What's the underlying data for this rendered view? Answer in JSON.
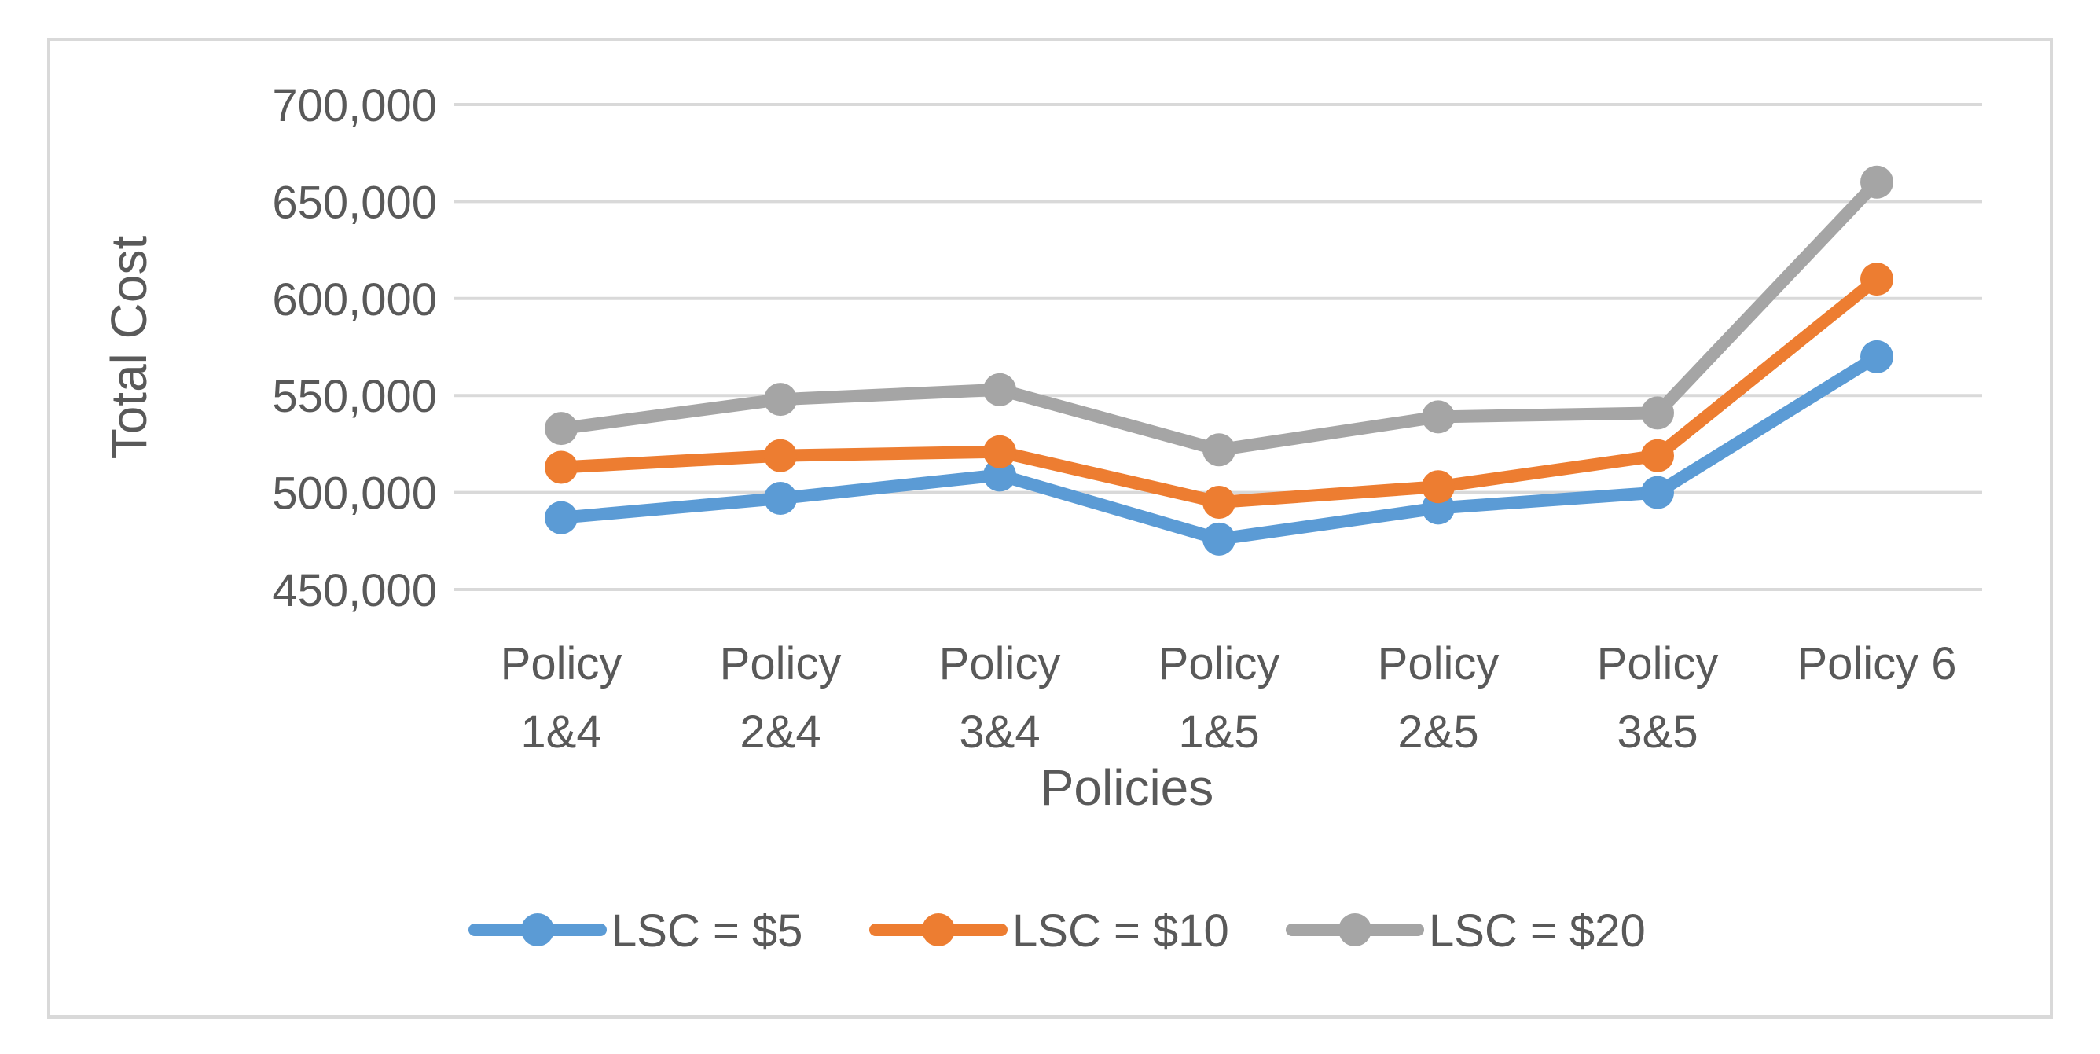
{
  "chart_data": {
    "type": "line",
    "title": "",
    "xlabel": "Policies",
    "ylabel": "Total Cost",
    "categories": [
      [
        "Policy",
        "1&4"
      ],
      [
        "Policy",
        "2&4"
      ],
      [
        "Policy",
        "3&4"
      ],
      [
        "Policy",
        "1&5"
      ],
      [
        "Policy",
        "2&5"
      ],
      [
        "Policy",
        "3&5"
      ],
      [
        "Policy 6"
      ]
    ],
    "ylim": [
      450000,
      700000
    ],
    "yticks": [
      450000,
      500000,
      550000,
      600000,
      650000,
      700000
    ],
    "ytick_labels": [
      "450,000",
      "500,000",
      "550,000",
      "600,000",
      "650,000",
      "700,000"
    ],
    "grid": true,
    "legend_position": "bottom",
    "series": [
      {
        "name": "LSC = $5",
        "color": "#5B9BD5",
        "values": [
          487000,
          497000,
          509000,
          476000,
          492000,
          500000,
          570000
        ]
      },
      {
        "name": "LSC = $10",
        "color": "#ED7D31",
        "values": [
          513000,
          519000,
          521000,
          495000,
          503000,
          519000,
          610000
        ]
      },
      {
        "name": "LSC = $20",
        "color": "#A5A5A5",
        "values": [
          533000,
          548000,
          553000,
          522000,
          539000,
          541000,
          660000
        ]
      }
    ]
  },
  "style": {
    "gridline_color": "#D9D9D9",
    "border_color": "#D9D9D9",
    "text_color": "#595959"
  }
}
